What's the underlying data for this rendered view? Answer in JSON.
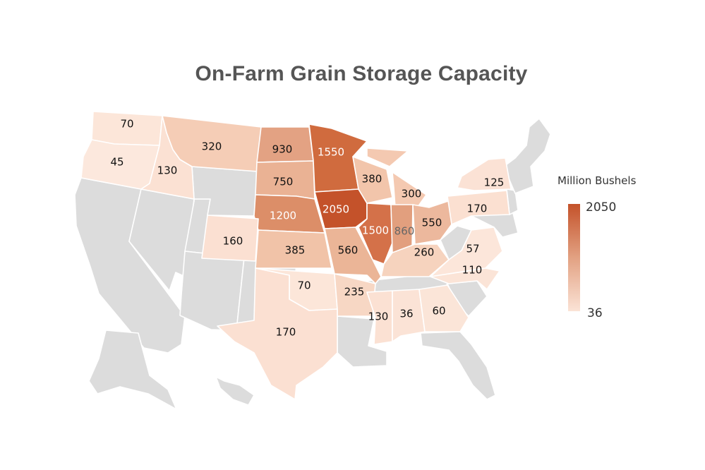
{
  "title": "On-Farm Grain Storage Capacity",
  "legend": {
    "title": "Million Bushels",
    "max": "2050",
    "min": "36",
    "max_color": "#c4522a",
    "min_color": "#fbe3d6"
  },
  "colors": {
    "no_data": "#dcdcdc",
    "border": "#ffffff",
    "label_dark": "#111111",
    "label_light": "#ffffff"
  },
  "map_data": {
    "type": "choropleth",
    "region": "United States",
    "unit": "Million Bushels",
    "range": [
      36,
      2050
    ],
    "states": [
      {
        "state": "WA",
        "value": 70,
        "label": "70"
      },
      {
        "state": "OR",
        "value": 45,
        "label": "45"
      },
      {
        "state": "ID",
        "value": 130,
        "label": "130"
      },
      {
        "state": "MT",
        "value": 320,
        "label": "320"
      },
      {
        "state": "ND",
        "value": 930,
        "label": "930"
      },
      {
        "state": "SD",
        "value": 750,
        "label": "750"
      },
      {
        "state": "NE",
        "value": 1200,
        "label": "1200"
      },
      {
        "state": "MN",
        "value": 1550,
        "label": "1550"
      },
      {
        "state": "IA",
        "value": 2050,
        "label": "2050"
      },
      {
        "state": "WI",
        "value": 380,
        "label": "380"
      },
      {
        "state": "MI",
        "value": 300,
        "label": "300"
      },
      {
        "state": "IL",
        "value": 1500,
        "label": "1500"
      },
      {
        "state": "IN",
        "value": 860,
        "label": "860"
      },
      {
        "state": "OH",
        "value": 550,
        "label": "550"
      },
      {
        "state": "NY",
        "value": 125,
        "label": "125"
      },
      {
        "state": "PA",
        "value": 170,
        "label": "170"
      },
      {
        "state": "CO",
        "value": 160,
        "label": "160"
      },
      {
        "state": "KS",
        "value": 385,
        "label": "385"
      },
      {
        "state": "MO",
        "value": 560,
        "label": "560"
      },
      {
        "state": "KY",
        "value": 260,
        "label": "260"
      },
      {
        "state": "VA",
        "value": 57,
        "label": "57"
      },
      {
        "state": "NC",
        "value": 110,
        "label": "110"
      },
      {
        "state": "OK",
        "value": 70,
        "label": "70"
      },
      {
        "state": "AR",
        "value": 235,
        "label": "235"
      },
      {
        "state": "TX",
        "value": 170,
        "label": "170"
      },
      {
        "state": "MS",
        "value": 130,
        "label": "130"
      },
      {
        "state": "AL",
        "value": 36,
        "label": "36"
      },
      {
        "state": "GA",
        "value": 60,
        "label": "60"
      }
    ]
  }
}
